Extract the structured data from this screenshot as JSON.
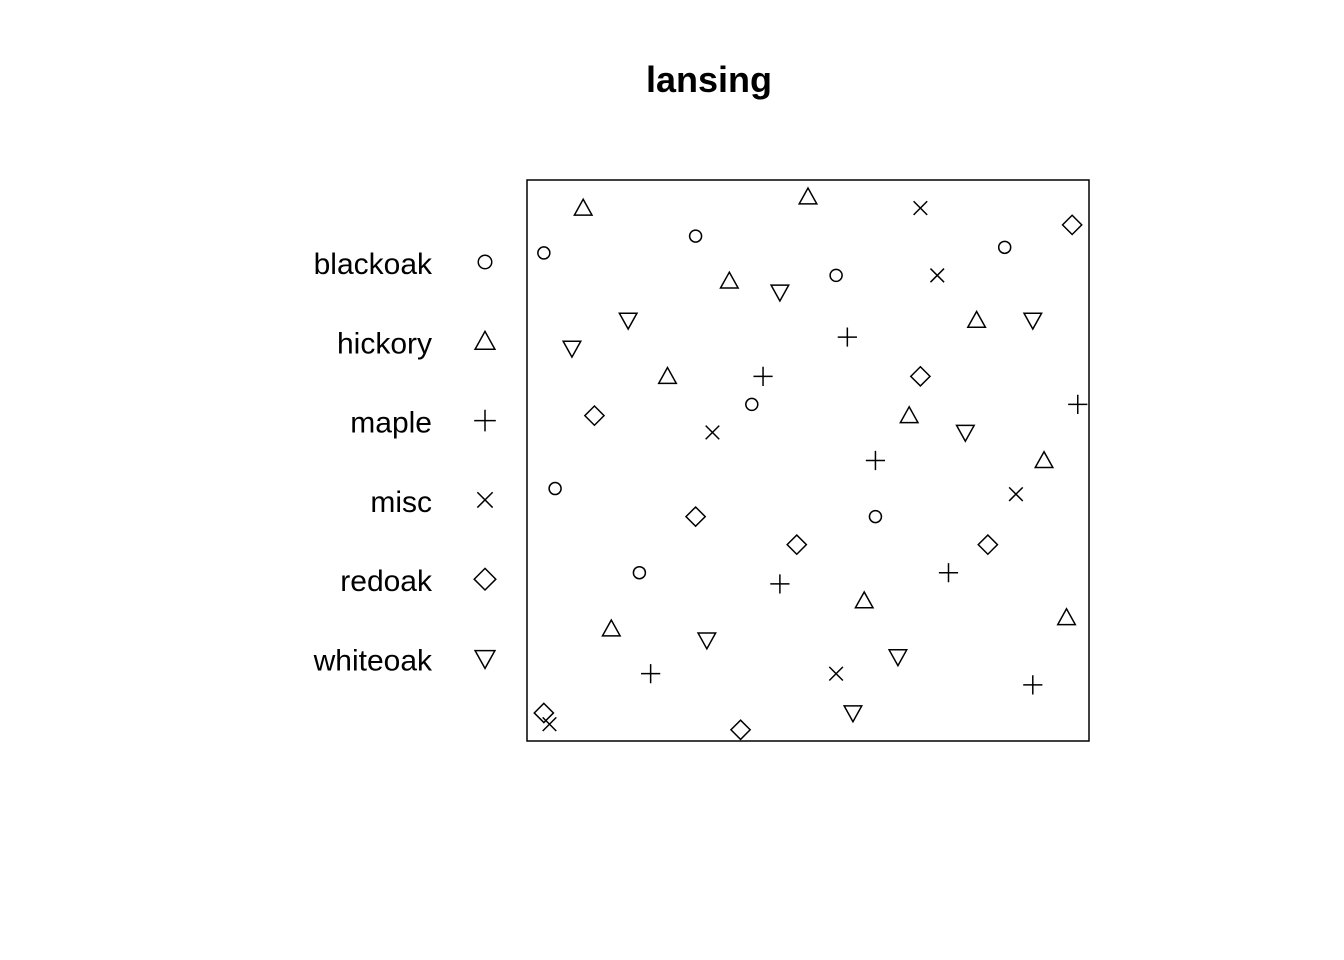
{
  "chart_data": {
    "type": "scatter",
    "title": "lansing",
    "xlabel": "",
    "ylabel": "",
    "xlim": [
      0,
      1
    ],
    "ylim": [
      0,
      1
    ],
    "axes_shown": false,
    "grid": false,
    "window_frame": true,
    "legend_position": "left",
    "marks": "point pattern of trees, one symbol per tree according to species (densely overplotted)",
    "species": [
      {
        "name": "blackoak",
        "symbol": "circle"
      },
      {
        "name": "hickory",
        "symbol": "triangle-up"
      },
      {
        "name": "maple",
        "symbol": "plus"
      },
      {
        "name": "misc",
        "symbol": "cross"
      },
      {
        "name": "redoak",
        "symbol": "diamond"
      },
      {
        "name": "whiteoak",
        "symbol": "triangle-down"
      }
    ],
    "sample_points": [
      {
        "x": 0.03,
        "y": 0.87,
        "species": "blackoak"
      },
      {
        "x": 0.3,
        "y": 0.9,
        "species": "blackoak"
      },
      {
        "x": 0.55,
        "y": 0.83,
        "species": "blackoak"
      },
      {
        "x": 0.85,
        "y": 0.88,
        "species": "blackoak"
      },
      {
        "x": 0.05,
        "y": 0.45,
        "species": "blackoak"
      },
      {
        "x": 0.4,
        "y": 0.6,
        "species": "blackoak"
      },
      {
        "x": 0.62,
        "y": 0.4,
        "species": "blackoak"
      },
      {
        "x": 0.2,
        "y": 0.3,
        "species": "blackoak"
      },
      {
        "x": 0.1,
        "y": 0.95,
        "species": "hickory"
      },
      {
        "x": 0.5,
        "y": 0.97,
        "species": "hickory"
      },
      {
        "x": 0.8,
        "y": 0.75,
        "species": "hickory"
      },
      {
        "x": 0.25,
        "y": 0.65,
        "species": "hickory"
      },
      {
        "x": 0.68,
        "y": 0.58,
        "species": "hickory"
      },
      {
        "x": 0.92,
        "y": 0.5,
        "species": "hickory"
      },
      {
        "x": 0.15,
        "y": 0.2,
        "species": "hickory"
      },
      {
        "x": 0.96,
        "y": 0.22,
        "species": "hickory"
      },
      {
        "x": 0.6,
        "y": 0.25,
        "species": "hickory"
      },
      {
        "x": 0.36,
        "y": 0.82,
        "species": "hickory"
      },
      {
        "x": 0.42,
        "y": 0.65,
        "species": "maple"
      },
      {
        "x": 0.57,
        "y": 0.72,
        "species": "maple"
      },
      {
        "x": 0.62,
        "y": 0.5,
        "species": "maple"
      },
      {
        "x": 0.75,
        "y": 0.3,
        "species": "maple"
      },
      {
        "x": 0.9,
        "y": 0.1,
        "species": "maple"
      },
      {
        "x": 0.22,
        "y": 0.12,
        "species": "maple"
      },
      {
        "x": 0.45,
        "y": 0.28,
        "species": "maple"
      },
      {
        "x": 0.98,
        "y": 0.6,
        "species": "maple"
      },
      {
        "x": 0.7,
        "y": 0.95,
        "species": "misc"
      },
      {
        "x": 0.73,
        "y": 0.83,
        "species": "misc"
      },
      {
        "x": 0.33,
        "y": 0.55,
        "species": "misc"
      },
      {
        "x": 0.87,
        "y": 0.44,
        "species": "misc"
      },
      {
        "x": 0.04,
        "y": 0.03,
        "species": "misc"
      },
      {
        "x": 0.55,
        "y": 0.12,
        "species": "misc"
      },
      {
        "x": 0.03,
        "y": 0.05,
        "species": "redoak"
      },
      {
        "x": 0.12,
        "y": 0.58,
        "species": "redoak"
      },
      {
        "x": 0.3,
        "y": 0.4,
        "species": "redoak"
      },
      {
        "x": 0.48,
        "y": 0.35,
        "species": "redoak"
      },
      {
        "x": 0.7,
        "y": 0.65,
        "species": "redoak"
      },
      {
        "x": 0.97,
        "y": 0.92,
        "species": "redoak"
      },
      {
        "x": 0.38,
        "y": 0.02,
        "species": "redoak"
      },
      {
        "x": 0.82,
        "y": 0.35,
        "species": "redoak"
      },
      {
        "x": 0.18,
        "y": 0.75,
        "species": "whiteoak"
      },
      {
        "x": 0.45,
        "y": 0.8,
        "species": "whiteoak"
      },
      {
        "x": 0.32,
        "y": 0.18,
        "species": "whiteoak"
      },
      {
        "x": 0.58,
        "y": 0.05,
        "species": "whiteoak"
      },
      {
        "x": 0.78,
        "y": 0.55,
        "species": "whiteoak"
      },
      {
        "x": 0.9,
        "y": 0.75,
        "species": "whiteoak"
      },
      {
        "x": 0.08,
        "y": 0.7,
        "species": "whiteoak"
      },
      {
        "x": 0.66,
        "y": 0.15,
        "species": "whiteoak"
      }
    ]
  }
}
